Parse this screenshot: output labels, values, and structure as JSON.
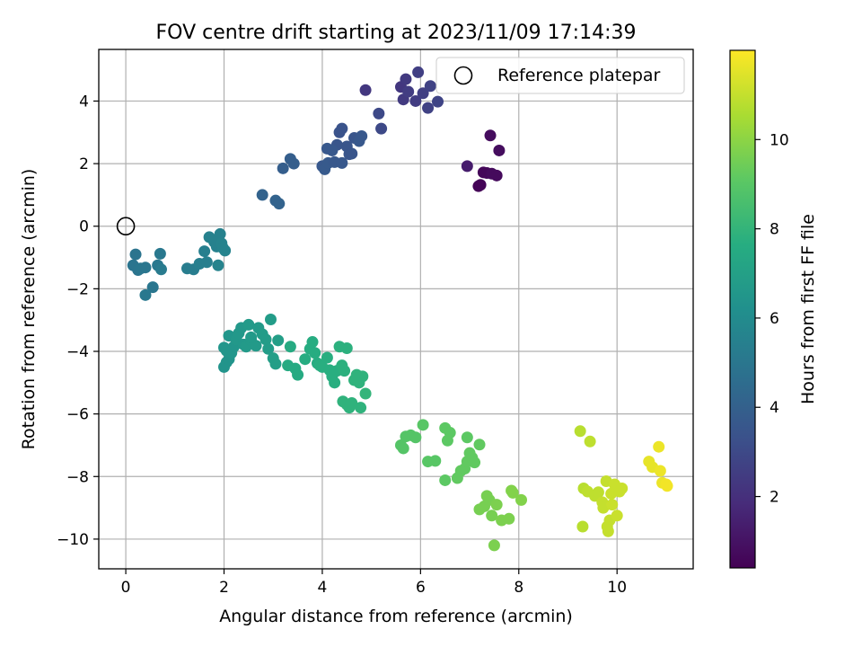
{
  "chart_data": {
    "type": "scatter",
    "title": "FOV centre drift starting at 2023/11/09 17:14:39",
    "xlabel": "Angular distance from reference (arcmin)",
    "ylabel": "Rotation from reference (arcmin)",
    "xlim": [
      -0.55,
      11.55
    ],
    "ylim": [
      -10.95,
      5.65
    ],
    "x_ticks": [
      0,
      2,
      4,
      6,
      8,
      10
    ],
    "y_ticks": [
      -10,
      -8,
      -6,
      -4,
      -2,
      0,
      2,
      4
    ],
    "grid": true,
    "legend": {
      "position": "top-right",
      "entries": [
        {
          "label": "Reference platepar",
          "marker": "open-circle"
        }
      ]
    },
    "reference_point": {
      "x": 0,
      "y": 0
    },
    "colorbar": {
      "label": "Hours from first FF file",
      "colormap": "viridis",
      "range": [
        0.4,
        12.0
      ],
      "ticks": [
        2,
        4,
        6,
        8,
        10
      ]
    },
    "series": [
      {
        "points": [
          [
            7.18,
            1.28
          ],
          [
            7.22,
            1.32
          ],
          [
            7.28,
            1.72
          ],
          [
            7.35,
            1.7
          ],
          [
            7.45,
            1.68
          ],
          [
            7.55,
            1.62
          ],
          [
            7.42,
            2.9
          ],
          [
            7.6,
            2.42
          ],
          [
            6.95,
            1.92
          ],
          [
            4.88,
            4.35
          ],
          [
            5.6,
            4.45
          ],
          [
            5.65,
            4.05
          ],
          [
            5.7,
            4.7
          ],
          [
            5.75,
            4.3
          ],
          [
            5.9,
            4.0
          ],
          [
            5.95,
            4.92
          ],
          [
            6.05,
            4.25
          ],
          [
            6.15,
            3.78
          ],
          [
            6.2,
            4.48
          ],
          [
            6.35,
            3.98
          ],
          [
            5.15,
            3.6
          ],
          [
            5.2,
            3.12
          ],
          [
            4.35,
            3.0
          ],
          [
            4.4,
            3.12
          ],
          [
            4.5,
            2.55
          ],
          [
            4.55,
            2.3
          ],
          [
            4.65,
            2.82
          ],
          [
            4.75,
            2.72
          ],
          [
            4.8,
            2.88
          ],
          [
            4.3,
            2.6
          ],
          [
            4.2,
            2.42
          ],
          [
            4.1,
            2.48
          ],
          [
            4.0,
            1.92
          ],
          [
            4.05,
            1.82
          ],
          [
            4.12,
            2.02
          ],
          [
            4.25,
            2.05
          ],
          [
            4.4,
            2.02
          ],
          [
            4.6,
            2.32
          ],
          [
            3.2,
            1.85
          ],
          [
            3.35,
            2.15
          ],
          [
            3.42,
            2.0
          ],
          [
            2.78,
            1.0
          ],
          [
            3.05,
            0.82
          ],
          [
            3.12,
            0.72
          ],
          [
            0.15,
            -1.25
          ],
          [
            0.2,
            -0.9
          ],
          [
            0.25,
            -1.4
          ],
          [
            0.3,
            -1.35
          ],
          [
            0.4,
            -1.32
          ],
          [
            0.55,
            -1.95
          ],
          [
            0.4,
            -2.2
          ],
          [
            0.65,
            -1.25
          ],
          [
            0.7,
            -0.88
          ],
          [
            0.72,
            -1.38
          ],
          [
            1.25,
            -1.35
          ],
          [
            1.38,
            -1.38
          ],
          [
            1.5,
            -1.2
          ],
          [
            1.6,
            -0.8
          ],
          [
            1.65,
            -1.15
          ],
          [
            1.7,
            -0.35
          ],
          [
            1.8,
            -0.5
          ],
          [
            1.85,
            -0.65
          ],
          [
            1.92,
            -0.25
          ],
          [
            1.95,
            -0.55
          ],
          [
            1.98,
            -0.7
          ],
          [
            2.02,
            -0.78
          ],
          [
            1.88,
            -1.25
          ],
          [
            2.0,
            -4.5
          ],
          [
            2.05,
            -4.35
          ],
          [
            2.1,
            -4.25
          ],
          [
            2.15,
            -4.05
          ],
          [
            2.2,
            -3.85
          ],
          [
            2.0,
            -3.88
          ],
          [
            2.05,
            -3.98
          ],
          [
            2.1,
            -3.5
          ],
          [
            2.25,
            -3.62
          ],
          [
            2.3,
            -3.42
          ],
          [
            2.35,
            -3.25
          ],
          [
            2.4,
            -3.78
          ],
          [
            2.45,
            -3.85
          ],
          [
            2.5,
            -3.15
          ],
          [
            2.55,
            -3.65
          ],
          [
            2.65,
            -3.82
          ],
          [
            2.7,
            -3.25
          ],
          [
            2.78,
            -3.45
          ],
          [
            2.85,
            -3.62
          ],
          [
            2.9,
            -3.92
          ],
          [
            2.95,
            -2.98
          ],
          [
            3.0,
            -4.22
          ],
          [
            3.05,
            -4.4
          ],
          [
            3.1,
            -3.65
          ],
          [
            2.55,
            -3.55
          ],
          [
            3.3,
            -4.45
          ],
          [
            3.35,
            -3.85
          ],
          [
            3.45,
            -4.55
          ],
          [
            3.5,
            -4.75
          ],
          [
            3.65,
            -4.25
          ],
          [
            3.75,
            -3.92
          ],
          [
            3.8,
            -3.7
          ],
          [
            3.85,
            -4.05
          ],
          [
            3.9,
            -4.38
          ],
          [
            3.95,
            -4.45
          ],
          [
            4.0,
            -4.5
          ],
          [
            4.1,
            -4.2
          ],
          [
            4.15,
            -4.6
          ],
          [
            4.2,
            -4.8
          ],
          [
            4.25,
            -5.0
          ],
          [
            4.3,
            -4.62
          ],
          [
            4.35,
            -3.85
          ],
          [
            4.4,
            -4.45
          ],
          [
            4.45,
            -4.62
          ],
          [
            4.5,
            -3.9
          ],
          [
            4.42,
            -5.6
          ],
          [
            4.5,
            -5.7
          ],
          [
            4.55,
            -5.8
          ],
          [
            4.6,
            -5.65
          ],
          [
            4.7,
            -4.75
          ],
          [
            4.75,
            -5.0
          ],
          [
            4.78,
            -5.8
          ],
          [
            4.82,
            -4.8
          ],
          [
            4.88,
            -5.35
          ],
          [
            4.65,
            -4.92
          ],
          [
            5.6,
            -7.0
          ],
          [
            5.65,
            -7.1
          ],
          [
            5.7,
            -6.72
          ],
          [
            5.8,
            -6.68
          ],
          [
            5.9,
            -6.75
          ],
          [
            6.05,
            -6.35
          ],
          [
            6.15,
            -7.52
          ],
          [
            6.3,
            -7.5
          ],
          [
            6.5,
            -6.45
          ],
          [
            6.55,
            -6.85
          ],
          [
            6.6,
            -6.6
          ],
          [
            6.5,
            -8.12
          ],
          [
            6.75,
            -8.05
          ],
          [
            6.82,
            -7.82
          ],
          [
            6.9,
            -7.75
          ],
          [
            6.95,
            -7.52
          ],
          [
            7.0,
            -7.25
          ],
          [
            7.05,
            -7.4
          ],
          [
            7.1,
            -7.55
          ],
          [
            6.95,
            -6.75
          ],
          [
            7.2,
            -6.98
          ],
          [
            7.2,
            -9.05
          ],
          [
            7.3,
            -8.95
          ],
          [
            7.35,
            -8.62
          ],
          [
            7.4,
            -8.75
          ],
          [
            7.45,
            -9.25
          ],
          [
            7.5,
            -10.2
          ],
          [
            7.55,
            -8.9
          ],
          [
            7.65,
            -9.4
          ],
          [
            7.8,
            -9.35
          ],
          [
            7.85,
            -8.45
          ],
          [
            7.88,
            -8.52
          ],
          [
            8.05,
            -8.75
          ],
          [
            9.25,
            -6.55
          ],
          [
            9.3,
            -9.6
          ],
          [
            9.32,
            -8.38
          ],
          [
            9.4,
            -8.48
          ],
          [
            9.45,
            -6.88
          ],
          [
            9.55,
            -8.62
          ],
          [
            9.62,
            -8.5
          ],
          [
            9.7,
            -8.82
          ],
          [
            9.72,
            -9.0
          ],
          [
            9.78,
            -8.15
          ],
          [
            9.8,
            -9.6
          ],
          [
            9.82,
            -9.75
          ],
          [
            9.85,
            -9.4
          ],
          [
            9.88,
            -8.55
          ],
          [
            9.9,
            -8.9
          ],
          [
            9.95,
            -8.25
          ],
          [
            10.0,
            -9.25
          ],
          [
            10.05,
            -8.48
          ],
          [
            10.1,
            -8.38
          ],
          [
            10.65,
            -7.52
          ],
          [
            10.72,
            -7.7
          ],
          [
            10.85,
            -7.05
          ],
          [
            10.88,
            -7.82
          ],
          [
            10.92,
            -8.2
          ],
          [
            11.0,
            -8.25
          ],
          [
            11.02,
            -8.3
          ]
        ],
        "hours": [
          0.5,
          0.5,
          0.6,
          0.6,
          0.7,
          0.7,
          0.8,
          0.8,
          1.3,
          2.3,
          2.3,
          2.4,
          2.4,
          2.5,
          2.5,
          2.6,
          2.6,
          2.7,
          2.7,
          2.8,
          3.0,
          3.0,
          3.4,
          3.4,
          3.5,
          3.5,
          3.5,
          3.6,
          3.6,
          3.5,
          3.6,
          3.6,
          3.6,
          3.7,
          3.7,
          3.6,
          3.6,
          3.5,
          3.9,
          3.9,
          3.9,
          4.1,
          4.1,
          4.1,
          4.9,
          4.9,
          4.9,
          5.0,
          5.0,
          5.0,
          5.1,
          5.1,
          5.1,
          5.2,
          5.3,
          5.3,
          5.4,
          5.4,
          5.4,
          5.5,
          5.5,
          5.5,
          5.5,
          5.6,
          5.6,
          5.6,
          5.6,
          6.4,
          6.4,
          6.4,
          6.5,
          6.5,
          6.5,
          6.5,
          6.5,
          6.6,
          6.6,
          6.6,
          6.6,
          6.7,
          6.7,
          6.7,
          6.7,
          6.7,
          6.8,
          6.8,
          6.8,
          6.8,
          6.9,
          6.9,
          6.9,
          6.7,
          7.5,
          7.5,
          7.5,
          7.5,
          7.6,
          7.6,
          7.6,
          7.6,
          7.6,
          7.7,
          7.7,
          7.7,
          7.7,
          7.7,
          7.7,
          7.7,
          7.8,
          7.8,
          7.8,
          7.8,
          7.9,
          7.9,
          7.9,
          7.9,
          7.9,
          7.9,
          7.9,
          7.9,
          8.0,
          7.9,
          8.9,
          8.9,
          8.9,
          8.9,
          8.9,
          9.0,
          9.0,
          9.0,
          9.1,
          9.1,
          9.1,
          9.1,
          9.2,
          9.2,
          9.2,
          9.2,
          9.2,
          9.2,
          9.2,
          9.1,
          9.2,
          9.6,
          9.6,
          9.6,
          9.6,
          9.6,
          9.7,
          9.7,
          9.7,
          9.7,
          9.8,
          9.8,
          9.8,
          10.8,
          10.8,
          10.8,
          10.9,
          10.9,
          10.9,
          10.9,
          11.0,
          11.0,
          11.0,
          11.0,
          11.0,
          11.0,
          11.1,
          11.1,
          11.1,
          11.1,
          11.1,
          11.1,
          11.6,
          11.6,
          11.7,
          11.7,
          11.7,
          11.8,
          11.8
        ]
      }
    ]
  }
}
